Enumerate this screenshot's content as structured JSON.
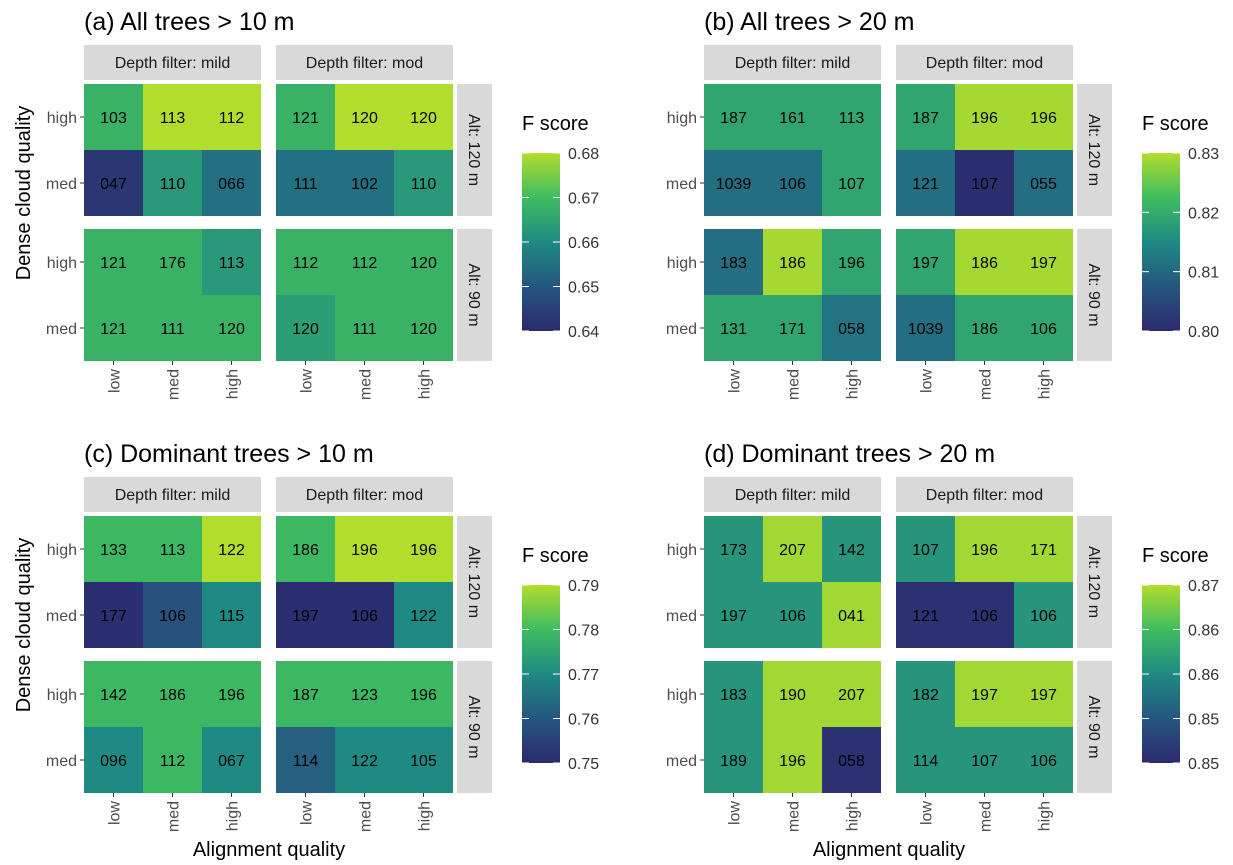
{
  "chart_data": [
    {
      "type": "heatmap",
      "title": "(a) All trees > 10 m",
      "xlabel": "",
      "ylabel": "Dense cloud quality",
      "x_categories": [
        "low",
        "med",
        "high"
      ],
      "y_categories": [
        "high",
        "med"
      ],
      "col_facets": [
        "Depth filter: mild",
        "Depth filter: mod"
      ],
      "row_facets": [
        "Alt: 120 m",
        "Alt: 90 m"
      ],
      "legend": {
        "title": "F score",
        "ticks": [
          "0.64",
          "0.65",
          "0.66",
          "0.67",
          "0.68"
        ],
        "range": [
          0.64,
          0.68
        ]
      },
      "panels": [
        {
          "row_facet": "Alt: 120 m",
          "col_facet": "Depth filter: mild",
          "labels": [
            [
              "103",
              "113",
              "112"
            ],
            [
              "047",
              "110",
              "066"
            ]
          ],
          "values": [
            [
              0.668,
              0.68,
              0.68
            ],
            [
              0.643,
              0.663,
              0.655
            ]
          ]
        },
        {
          "row_facet": "Alt: 120 m",
          "col_facet": "Depth filter: mod",
          "labels": [
            [
              "121",
              "120",
              "120"
            ],
            [
              "111",
              "102",
              "110"
            ]
          ],
          "values": [
            [
              0.668,
              0.68,
              0.68
            ],
            [
              0.655,
              0.655,
              0.663
            ]
          ]
        },
        {
          "row_facet": "Alt: 90 m",
          "col_facet": "Depth filter: mild",
          "labels": [
            [
              "121",
              "176",
              "113"
            ],
            [
              "121",
              "111",
              "120"
            ]
          ],
          "values": [
            [
              0.668,
              0.668,
              0.663
            ],
            [
              0.668,
              0.668,
              0.668
            ]
          ]
        },
        {
          "row_facet": "Alt: 90 m",
          "col_facet": "Depth filter: mod",
          "labels": [
            [
              "112",
              "112",
              "120"
            ],
            [
              "120",
              "111",
              "120"
            ]
          ],
          "values": [
            [
              0.668,
              0.668,
              0.668
            ],
            [
              0.664,
              0.668,
              0.668
            ]
          ]
        }
      ]
    },
    {
      "type": "heatmap",
      "title": "(b) All trees > 20 m",
      "xlabel": "",
      "ylabel": "",
      "x_categories": [
        "low",
        "med",
        "high"
      ],
      "y_categories": [
        "high",
        "med"
      ],
      "col_facets": [
        "Depth filter: mild",
        "Depth filter: mod"
      ],
      "row_facets": [
        "Alt: 120 m",
        "Alt: 90 m"
      ],
      "legend": {
        "title": "F score",
        "ticks": [
          "0.80",
          "0.81",
          "0.82",
          "0.83"
        ],
        "range": [
          0.8,
          0.833
        ]
      },
      "panels": [
        {
          "row_facet": "Alt: 120 m",
          "col_facet": "Depth filter: mild",
          "labels": [
            [
              "187",
              "161",
              "113"
            ],
            [
              "1039",
              "106",
              "107"
            ]
          ],
          "values": [
            [
              0.821,
              0.821,
              0.821
            ],
            [
              0.812,
              0.812,
              0.821
            ]
          ]
        },
        {
          "row_facet": "Alt: 120 m",
          "col_facet": "Depth filter: mod",
          "labels": [
            [
              "187",
              "196",
              "196"
            ],
            [
              "121",
              "107",
              "055"
            ]
          ],
          "values": [
            [
              0.821,
              0.832,
              0.832
            ],
            [
              0.812,
              0.801,
              0.812
            ]
          ]
        },
        {
          "row_facet": "Alt: 90 m",
          "col_facet": "Depth filter: mild",
          "labels": [
            [
              "183",
              "186",
              "196"
            ],
            [
              "131",
              "171",
              "058"
            ]
          ],
          "values": [
            [
              0.812,
              0.832,
              0.821
            ],
            [
              0.821,
              0.821,
              0.813
            ]
          ]
        },
        {
          "row_facet": "Alt: 90 m",
          "col_facet": "Depth filter: mod",
          "labels": [
            [
              "197",
              "186",
              "197"
            ],
            [
              "1039",
              "186",
              "106"
            ]
          ],
          "values": [
            [
              0.821,
              0.832,
              0.832
            ],
            [
              0.812,
              0.821,
              0.821
            ]
          ]
        }
      ]
    },
    {
      "type": "heatmap",
      "title": "(c) Dominant trees > 10 m",
      "xlabel": "Alignment quality",
      "ylabel": "Dense cloud quality",
      "x_categories": [
        "low",
        "med",
        "high"
      ],
      "y_categories": [
        "high",
        "med"
      ],
      "col_facets": [
        "Depth filter: mild",
        "Depth filter: mod"
      ],
      "row_facets": [
        "Alt: 120 m",
        "Alt: 90 m"
      ],
      "legend": {
        "title": "F score",
        "ticks": [
          "0.75",
          "0.76",
          "0.77",
          "0.78",
          "0.79"
        ],
        "range": [
          0.75,
          0.79
        ]
      },
      "panels": [
        {
          "row_facet": "Alt: 120 m",
          "col_facet": "Depth filter: mild",
          "labels": [
            [
              "133",
              "113",
              "122"
            ],
            [
              "177",
              "106",
              "115"
            ]
          ],
          "values": [
            [
              0.779,
              0.779,
              0.79
            ],
            [
              0.751,
              0.759,
              0.77
            ]
          ]
        },
        {
          "row_facet": "Alt: 120 m",
          "col_facet": "Depth filter: mod",
          "labels": [
            [
              "186",
              "196",
              "196"
            ],
            [
              "197",
              "106",
              "122"
            ]
          ],
          "values": [
            [
              0.779,
              0.79,
              0.79
            ],
            [
              0.751,
              0.751,
              0.77
            ]
          ]
        },
        {
          "row_facet": "Alt: 90 m",
          "col_facet": "Depth filter: mild",
          "labels": [
            [
              "142",
              "186",
              "196"
            ],
            [
              "096",
              "112",
              "067"
            ]
          ],
          "values": [
            [
              0.779,
              0.779,
              0.779
            ],
            [
              0.77,
              0.779,
              0.77
            ]
          ]
        },
        {
          "row_facet": "Alt: 90 m",
          "col_facet": "Depth filter: mod",
          "labels": [
            [
              "187",
              "123",
              "196"
            ],
            [
              "114",
              "122",
              "105"
            ]
          ],
          "values": [
            [
              0.779,
              0.779,
              0.779
            ],
            [
              0.762,
              0.77,
              0.77
            ]
          ]
        }
      ]
    },
    {
      "type": "heatmap",
      "title": "(d) Dominant trees > 20 m",
      "xlabel": "Alignment quality",
      "ylabel": "",
      "x_categories": [
        "low",
        "med",
        "high"
      ],
      "y_categories": [
        "high",
        "med"
      ],
      "col_facets": [
        "Depth filter: mild",
        "Depth filter: mod"
      ],
      "row_facets": [
        "Alt: 120 m",
        "Alt: 90 m"
      ],
      "legend": {
        "title": "F score",
        "ticks": [
          "0.85",
          "0.85",
          "0.86",
          "0.86",
          "0.87"
        ],
        "range": [
          0.845,
          0.872
        ]
      },
      "panels": [
        {
          "row_facet": "Alt: 120 m",
          "col_facet": "Depth filter: mild",
          "labels": [
            [
              "173",
              "207",
              "142"
            ],
            [
              "197",
              "106",
              "041"
            ]
          ],
          "values": [
            [
              0.86,
              0.871,
              0.86
            ],
            [
              0.86,
              0.86,
              0.871
            ]
          ]
        },
        {
          "row_facet": "Alt: 120 m",
          "col_facet": "Depth filter: mod",
          "labels": [
            [
              "107",
              "196",
              "171"
            ],
            [
              "121",
              "106",
              "106"
            ]
          ],
          "values": [
            [
              0.86,
              0.871,
              0.871
            ],
            [
              0.846,
              0.846,
              0.86
            ]
          ]
        },
        {
          "row_facet": "Alt: 90 m",
          "col_facet": "Depth filter: mild",
          "labels": [
            [
              "183",
              "190",
              "207"
            ],
            [
              "189",
              "196",
              "058"
            ]
          ],
          "values": [
            [
              0.86,
              0.871,
              0.871
            ],
            [
              0.86,
              0.871,
              0.846
            ]
          ]
        },
        {
          "row_facet": "Alt: 90 m",
          "col_facet": "Depth filter: mod",
          "labels": [
            [
              "182",
              "197",
              "197"
            ],
            [
              "114",
              "107",
              "106"
            ]
          ],
          "values": [
            [
              0.86,
              0.871,
              0.871
            ],
            [
              0.86,
              0.86,
              0.86
            ]
          ]
        }
      ]
    }
  ]
}
